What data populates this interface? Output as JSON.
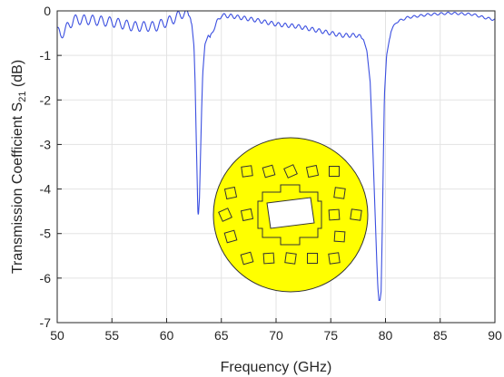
{
  "chart_data": {
    "type": "line",
    "xlabel": "Frequency (GHz)",
    "ylabel": {
      "prefix": "Transmission Coefficient S",
      "subscript": "21",
      "suffix": " (dB)"
    },
    "xlim": [
      50,
      90
    ],
    "ylim": [
      -7,
      0
    ],
    "xticks": [
      "50",
      "55",
      "60",
      "65",
      "70",
      "75",
      "80",
      "85",
      "90"
    ],
    "yticks": [
      "0",
      "-1",
      "-2",
      "-3",
      "-4",
      "-5",
      "-6",
      "-7"
    ],
    "grid": true,
    "series": [
      {
        "color": "#3b4fe0",
        "x": [
          50.0,
          50.3,
          51.5,
          53.0,
          55.0,
          57.0,
          59.0,
          60.5,
          61.5,
          62.0,
          62.3,
          62.5,
          62.6,
          62.7,
          62.8,
          62.85,
          62.9,
          63.0,
          63.1,
          63.2,
          63.3,
          63.5,
          63.8,
          64.0,
          64.3,
          64.6,
          65.0,
          66.0,
          68.0,
          70.0,
          72.0,
          74.0,
          76.0,
          77.5,
          78.0,
          78.3,
          78.6,
          78.8,
          79.0,
          79.2,
          79.3,
          79.4,
          79.5,
          79.6,
          79.7,
          79.8,
          79.9,
          80.1,
          80.5,
          81.0,
          82.0,
          84.0,
          86.0,
          88.0,
          89.0,
          90.0
        ],
        "y": [
          -0.45,
          -0.55,
          -0.2,
          -0.2,
          -0.25,
          -0.35,
          -0.35,
          -0.2,
          -0.05,
          -0.1,
          -0.3,
          -0.8,
          -1.6,
          -2.8,
          -3.9,
          -4.5,
          -4.6,
          -4.2,
          -3.2,
          -2.2,
          -1.4,
          -0.75,
          -0.55,
          -0.6,
          -0.4,
          -0.25,
          -0.1,
          -0.12,
          -0.2,
          -0.3,
          -0.35,
          -0.45,
          -0.55,
          -0.55,
          -0.65,
          -0.9,
          -1.6,
          -2.8,
          -4.2,
          -5.6,
          -6.2,
          -6.5,
          -6.5,
          -6.3,
          -5.0,
          -3.4,
          -1.9,
          -1.0,
          -0.45,
          -0.25,
          -0.15,
          -0.08,
          -0.05,
          -0.08,
          -0.15,
          -0.2
        ]
      }
    ]
  }
}
